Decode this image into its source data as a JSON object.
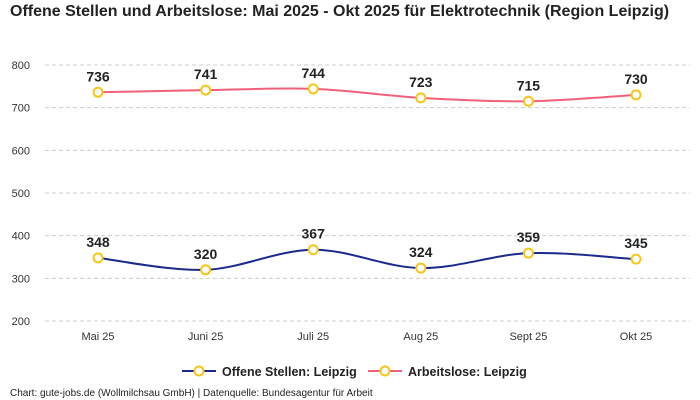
{
  "chart_data": {
    "type": "line",
    "title": "Offene Stellen und Arbeitslose: Mai 2025 - Okt 2025 für Elektrotechnik (Region Leipzig)",
    "categories": [
      "Mai 25",
      "Juni 25",
      "Juli 25",
      "Aug 25",
      "Sept 25",
      "Okt 25"
    ],
    "series": [
      {
        "name": "Offene Stellen: Leipzig",
        "values": [
          348,
          320,
          367,
          324,
          359,
          345
        ],
        "color": "#1a2a8c"
      },
      {
        "name": "Arbeitslose: Leipzig",
        "values": [
          736,
          741,
          744,
          723,
          715,
          730
        ],
        "color": "#f0607a"
      }
    ],
    "marker_color": "#f5c518",
    "ylim": [
      200,
      800
    ],
    "yticks": [
      200,
      300,
      400,
      500,
      600,
      700,
      800
    ],
    "grid": true,
    "legend": "bottom",
    "xlabel": "",
    "ylabel": ""
  },
  "footer": "Chart: gute-jobs.de (Wollmilchsau GmbH) | Datenquelle: Bundesagentur für Arbeit"
}
